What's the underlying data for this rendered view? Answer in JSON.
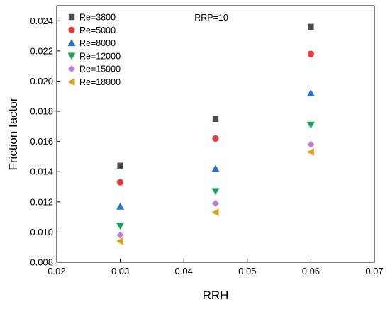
{
  "chart_data": {
    "type": "scatter",
    "title": "",
    "xlabel": "RRH",
    "ylabel": "Friction factor",
    "annotation": "RRP=10",
    "xlim": [
      0.02,
      0.07
    ],
    "ylim": [
      0.008,
      0.025
    ],
    "xticks": [
      "0.02",
      "0.03",
      "0.04",
      "0.05",
      "0.06",
      "0.07"
    ],
    "yticks": [
      "0.008",
      "0.010",
      "0.012",
      "0.014",
      "0.016",
      "0.018",
      "0.020",
      "0.022",
      "0.024"
    ],
    "legend_position": "top-left",
    "grid": false,
    "x": [
      0.03,
      0.045,
      0.06
    ],
    "series": [
      {
        "name": "Re=3800",
        "marker": "square",
        "color": "#4a4a4a",
        "values": [
          0.0144,
          0.0175,
          0.0236
        ]
      },
      {
        "name": "Re=5000",
        "marker": "circle",
        "color": "#e8393a",
        "values": [
          0.0133,
          0.0162,
          0.0218
        ]
      },
      {
        "name": "Re=8000",
        "marker": "triangle-up",
        "color": "#1f6fd6",
        "values": [
          0.0117,
          0.0142,
          0.0192
        ]
      },
      {
        "name": "Re=12000",
        "marker": "triangle-down",
        "color": "#19a55a",
        "values": [
          0.0104,
          0.0127,
          0.0171
        ]
      },
      {
        "name": "Re=15000",
        "marker": "diamond",
        "color": "#c07be0",
        "values": [
          0.0098,
          0.0119,
          0.0158
        ]
      },
      {
        "name": "Re=18000",
        "marker": "triangle-left",
        "color": "#d9a21b",
        "values": [
          0.0094,
          0.0113,
          0.0153
        ]
      }
    ]
  }
}
